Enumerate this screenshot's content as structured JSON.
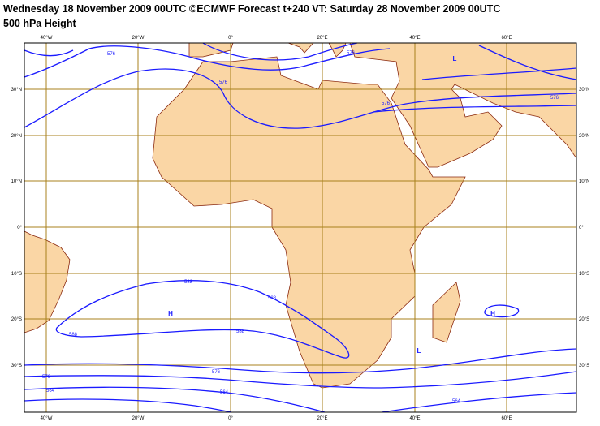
{
  "header": {
    "title": "Wednesday 18 November 2009 00UTC ©ECMWF Forecast t+240 VT: Saturday 28 November 2009 00UTC",
    "subtitle": "500 hPa Height"
  },
  "graticule": {
    "longitudes": [
      "40°W",
      "20°W",
      "0°",
      "20°E",
      "40°E",
      "60°E"
    ],
    "latitudes": [
      "30°N",
      "20°N",
      "10°N",
      "0°",
      "10°S",
      "20°S",
      "30°S"
    ]
  },
  "contour_labels": [
    "576",
    "576",
    "576",
    "576",
    "588",
    "588",
    "588",
    "588",
    "576",
    "576",
    "564",
    "564",
    "564",
    "576"
  ],
  "pressure_centers": [
    "L",
    "H",
    "H",
    "L"
  ]
}
